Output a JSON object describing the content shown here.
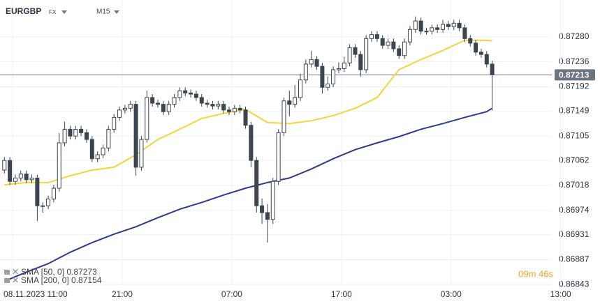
{
  "chart_data": {
    "type": "candlestick",
    "title": "EURGBP",
    "subtitle": "FX",
    "timeframe": "M15",
    "timer": "09m 46s",
    "up_color": "#ffffff",
    "down_color": "#3b444f",
    "grid": true,
    "x": [
      -0.75,
      -0.25,
      0.25,
      0.75,
      1.25,
      1.75,
      2.25,
      2.75,
      3.25,
      3.75,
      4.25,
      4.75,
      5.25,
      5.75,
      6.25,
      6.75,
      7.25,
      7.75,
      8.25,
      8.75,
      9.25,
      9.75,
      10.25,
      10.75,
      11.25,
      11.75,
      12.25,
      12.75,
      13.25,
      13.75,
      14.25,
      14.75,
      15.25,
      15.75,
      16.25,
      16.75,
      17.25,
      17.75,
      18.25,
      18.75,
      19.25,
      19.75,
      20.25,
      20.75,
      21.25,
      21.75,
      22.25,
      22.75,
      23.25,
      23.75,
      24.25,
      24.75,
      25.25,
      25.75,
      26.25,
      26.75,
      27.25,
      27.75,
      28.25,
      28.75,
      29.25,
      29.75,
      30.25,
      30.75,
      31.25,
      31.75,
      32.25,
      32.75,
      33.25,
      33.75,
      34.25,
      34.75,
      35.25,
      35.75,
      36.25,
      36.75,
      37.25,
      37.75,
      38.25,
      38.75,
      39.25,
      39.75,
      40.25,
      40.75,
      41.25,
      41.75,
      42.25,
      42.75,
      43.25,
      43.75
    ],
    "open": [
      0.87045,
      0.87062,
      0.87025,
      0.87031,
      0.87038,
      0.87028,
      0.87031,
      0.86982,
      0.86982,
      0.86994,
      0.87013,
      0.87093,
      0.87117,
      0.87105,
      0.87117,
      0.87111,
      0.87099,
      0.87065,
      0.87072,
      0.87084,
      0.87117,
      0.87138,
      0.87151,
      0.87154,
      0.87161,
      0.8705,
      0.87099,
      0.87173,
      0.87163,
      0.87161,
      0.87148,
      0.87161,
      0.87173,
      0.87185,
      0.87181,
      0.87179,
      0.87173,
      0.87163,
      0.87161,
      0.87158,
      0.87161,
      0.87151,
      0.87148,
      0.87154,
      0.87151,
      0.87124,
      0.87062,
      0.86982,
      0.8697,
      0.86958,
      0.87025,
      0.87111,
      0.87167,
      0.87161,
      0.87173,
      0.87204,
      0.87232,
      0.8724,
      0.87228,
      0.87191,
      0.87197,
      0.87222,
      0.87224,
      0.87234,
      0.87261,
      0.87249,
      0.87222,
      0.87277,
      0.87284,
      0.87277,
      0.87265,
      0.87271,
      0.87259,
      0.87247,
      0.87271,
      0.87293,
      0.87308,
      0.8729,
      0.8729,
      0.87296,
      0.87293,
      0.87302,
      0.87298,
      0.87304,
      0.87296,
      0.87277,
      0.87269,
      0.87253,
      0.87249,
      0.87232
    ],
    "high": [
      0.87068,
      0.87068,
      0.87037,
      0.87044,
      0.87044,
      0.87037,
      0.87037,
      0.86988,
      0.87,
      0.87019,
      0.8711,
      0.8713,
      0.87123,
      0.87123,
      0.87123,
      0.87117,
      0.87105,
      0.87078,
      0.8709,
      0.87123,
      0.87144,
      0.87157,
      0.8716,
      0.87167,
      0.87167,
      0.87105,
      0.87185,
      0.87179,
      0.87169,
      0.87167,
      0.87167,
      0.87179,
      0.87191,
      0.87191,
      0.87187,
      0.87185,
      0.87179,
      0.87169,
      0.87167,
      0.87167,
      0.87167,
      0.87157,
      0.8716,
      0.8716,
      0.87157,
      0.8713,
      0.87068,
      0.86995,
      0.86985,
      0.87031,
      0.87117,
      0.87173,
      0.87185,
      0.87195,
      0.87215,
      0.8724,
      0.87255,
      0.87246,
      0.87234,
      0.8721,
      0.87228,
      0.87235,
      0.87245,
      0.87267,
      0.87267,
      0.87255,
      0.87283,
      0.8729,
      0.8729,
      0.87283,
      0.87277,
      0.87277,
      0.87265,
      0.87277,
      0.87299,
      0.87316,
      0.87314,
      0.87296,
      0.87302,
      0.87302,
      0.8731,
      0.87308,
      0.8731,
      0.8731,
      0.87302,
      0.87283,
      0.87275,
      0.87259,
      0.87255,
      0.87238
    ],
    "low": [
      0.87039,
      0.87019,
      0.87019,
      0.87025,
      0.87022,
      0.87022,
      0.86955,
      0.8697,
      0.86976,
      0.86988,
      0.87007,
      0.87087,
      0.87099,
      0.87099,
      0.87105,
      0.87093,
      0.87059,
      0.87059,
      0.87066,
      0.87078,
      0.87111,
      0.87132,
      0.87145,
      0.87148,
      0.87035,
      0.87044,
      0.87093,
      0.87157,
      0.87155,
      0.87142,
      0.87142,
      0.87155,
      0.87167,
      0.87175,
      0.87173,
      0.87167,
      0.87157,
      0.87155,
      0.87152,
      0.87152,
      0.87145,
      0.87142,
      0.87142,
      0.87145,
      0.87118,
      0.8705,
      0.8697,
      0.8695,
      0.86917,
      0.8695,
      0.87019,
      0.87105,
      0.8714,
      0.87155,
      0.87167,
      0.87198,
      0.87226,
      0.87222,
      0.8718,
      0.87185,
      0.87191,
      0.87216,
      0.87218,
      0.87228,
      0.87243,
      0.8721,
      0.87216,
      0.87271,
      0.87271,
      0.87259,
      0.87259,
      0.87253,
      0.87241,
      0.87241,
      0.87265,
      0.87287,
      0.87284,
      0.87284,
      0.87284,
      0.87287,
      0.87287,
      0.87292,
      0.87292,
      0.8729,
      0.87271,
      0.87263,
      0.87247,
      0.87243,
      0.87226,
      0.8715
    ],
    "close": [
      0.87062,
      0.87025,
      0.87031,
      0.87038,
      0.87028,
      0.87031,
      0.86982,
      0.86982,
      0.86994,
      0.87013,
      0.87093,
      0.87117,
      0.87105,
      0.87117,
      0.87111,
      0.87099,
      0.87065,
      0.87072,
      0.87084,
      0.87117,
      0.87138,
      0.87151,
      0.87154,
      0.87161,
      0.8705,
      0.87099,
      0.87173,
      0.87163,
      0.87161,
      0.87148,
      0.87161,
      0.87173,
      0.87185,
      0.87181,
      0.87179,
      0.87173,
      0.87163,
      0.87161,
      0.87158,
      0.87161,
      0.87151,
      0.87148,
      0.87154,
      0.87151,
      0.87124,
      0.87062,
      0.86982,
      0.8697,
      0.86958,
      0.87025,
      0.87111,
      0.87167,
      0.87161,
      0.87173,
      0.87204,
      0.87232,
      0.8724,
      0.87228,
      0.87191,
      0.87197,
      0.87222,
      0.87224,
      0.87234,
      0.87261,
      0.87249,
      0.87222,
      0.87277,
      0.87284,
      0.87277,
      0.87265,
      0.87271,
      0.87259,
      0.87247,
      0.87271,
      0.87293,
      0.87308,
      0.8729,
      0.8729,
      0.87296,
      0.87293,
      0.87302,
      0.87298,
      0.87304,
      0.87296,
      0.87277,
      0.87269,
      0.87253,
      0.87249,
      0.87232,
      0.87213
    ],
    "series": [
      {
        "name": "SMA [50, 0] 0.87273",
        "color": "#f5d33a",
        "x": [
          -0.75,
          1.25,
          3.25,
          5.25,
          7.25,
          9.25,
          11.25,
          13.25,
          15.25,
          17.25,
          19.25,
          21.25,
          23.25,
          25.25,
          27.25,
          29.25,
          31.25,
          33.25,
          35.25,
          37.25,
          39.25,
          41.25,
          43.25,
          43.75
        ],
        "values": [
          0.87019,
          0.87023,
          0.87023,
          0.87035,
          0.87045,
          0.8705,
          0.87072,
          0.87099,
          0.87117,
          0.87136,
          0.87145,
          0.87152,
          0.87129,
          0.87127,
          0.87132,
          0.87141,
          0.87154,
          0.87173,
          0.87222,
          0.8724,
          0.87256,
          0.87274,
          0.87274,
          0.87273
        ]
      },
      {
        "name": "SMA [200, 0] 0.87154",
        "color": "#2e3a8c",
        "x": [
          -0.75,
          1.25,
          3.25,
          5.25,
          7.25,
          9.25,
          11.25,
          13.25,
          15.25,
          17.25,
          19.25,
          21.25,
          23.25,
          25.25,
          27.25,
          29.25,
          31.25,
          33.25,
          35.25,
          37.25,
          39.25,
          41.25,
          43.25,
          43.75
        ],
        "values": [
          0.86849,
          0.86865,
          0.8688,
          0.869,
          0.86917,
          0.86932,
          0.86945,
          0.86961,
          0.86976,
          0.86988,
          0.87001,
          0.87013,
          0.87023,
          0.87031,
          0.87047,
          0.87065,
          0.87081,
          0.87093,
          0.87104,
          0.87117,
          0.87127,
          0.87138,
          0.87148,
          0.87154
        ]
      }
    ],
    "last_price": 0.87213,
    "last_price_color": "#6b7480",
    "xlim": [
      -1.15,
      50.4
    ],
    "ylim": [
      0.8682,
      0.87345
    ],
    "xticks": [
      {
        "value": 0,
        "label": "08.11.2023 11:00"
      },
      {
        "value": 10,
        "label": "21:00"
      },
      {
        "value": 20,
        "label": "07:00"
      },
      {
        "value": 30,
        "label": "17:00"
      },
      {
        "value": 40,
        "label": "03:00"
      },
      {
        "value": 50,
        "label": "13:00"
      }
    ],
    "yticks": [
      {
        "value": 0.8728,
        "label": "0.87280"
      },
      0.87236,
      0.87192,
      0.87149,
      0.87105,
      0.87062,
      0.87018,
      0.86974,
      0.86931,
      0.86887,
      0.86843
    ]
  }
}
